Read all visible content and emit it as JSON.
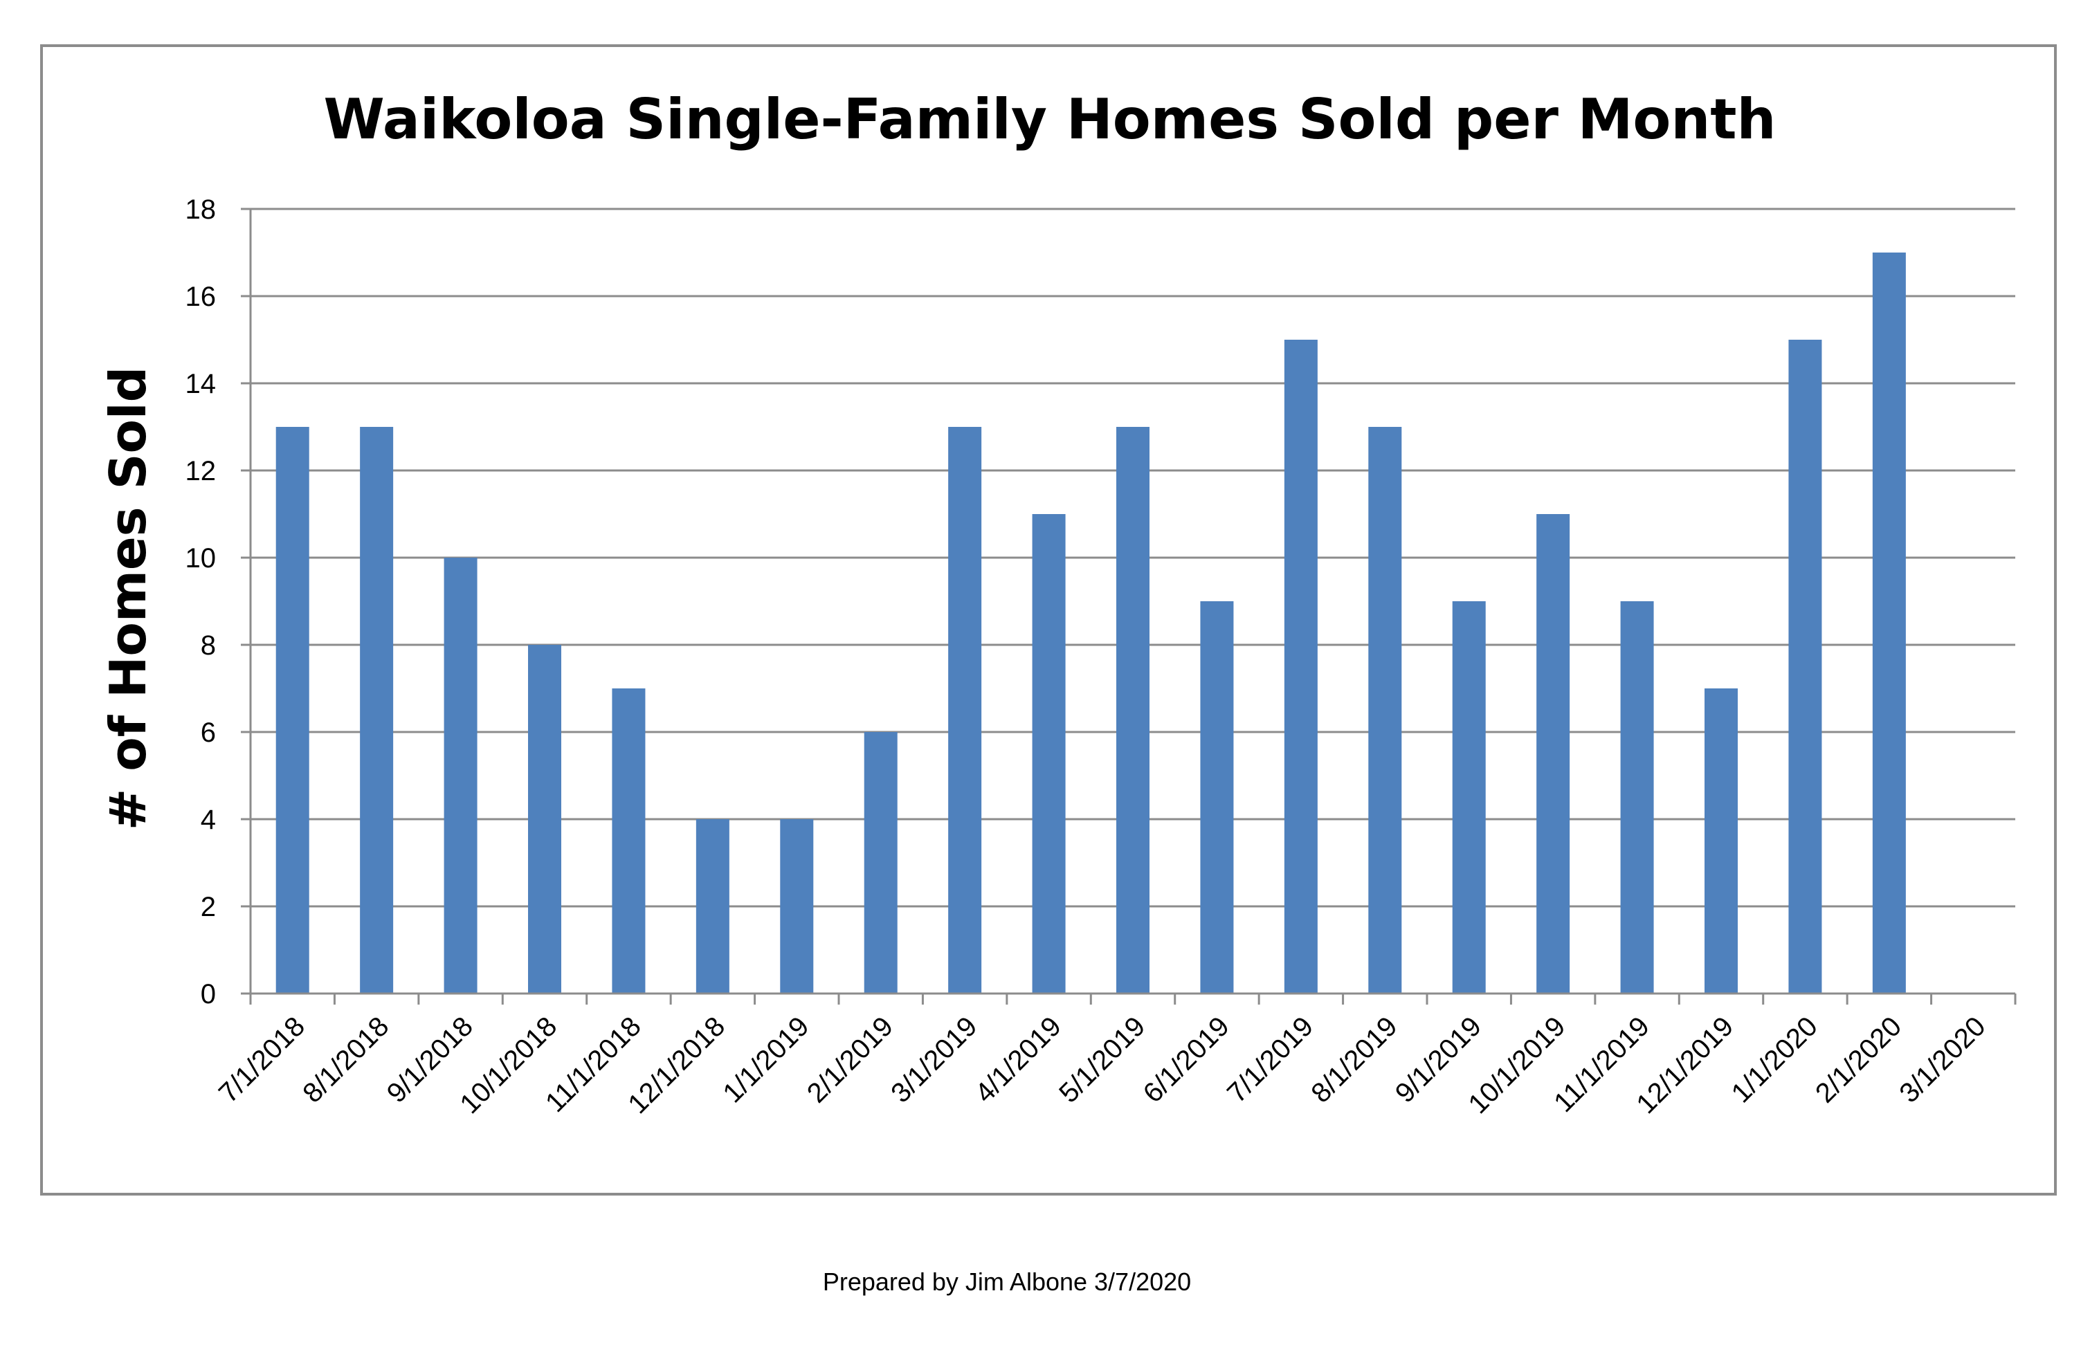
{
  "chart_data": {
    "type": "bar",
    "title": "Waikoloa Single-Family Homes Sold per Month",
    "xlabel": "",
    "ylabel": "# of Homes Sold",
    "categories": [
      "7/1/2018",
      "8/1/2018",
      "9/1/2018",
      "10/1/2018",
      "11/1/2018",
      "12/1/2018",
      "1/1/2019",
      "2/1/2019",
      "3/1/2019",
      "4/1/2019",
      "5/1/2019",
      "6/1/2019",
      "7/1/2019",
      "8/1/2019",
      "9/1/2019",
      "10/1/2019",
      "11/1/2019",
      "12/1/2019",
      "1/1/2020",
      "2/1/2020",
      "3/1/2020"
    ],
    "values": [
      13,
      13,
      10,
      8,
      7,
      4,
      4,
      6,
      13,
      11,
      13,
      9,
      15,
      13,
      9,
      11,
      9,
      7,
      15,
      17,
      null
    ],
    "ylim": [
      0,
      18
    ],
    "yticks": [
      0,
      2,
      4,
      6,
      8,
      10,
      12,
      14,
      16,
      18
    ],
    "grid": true,
    "legend": "none",
    "bar_color": "#4F81BD"
  },
  "footer": {
    "text": "Prepared by Jim Albone 3/7/2020"
  }
}
